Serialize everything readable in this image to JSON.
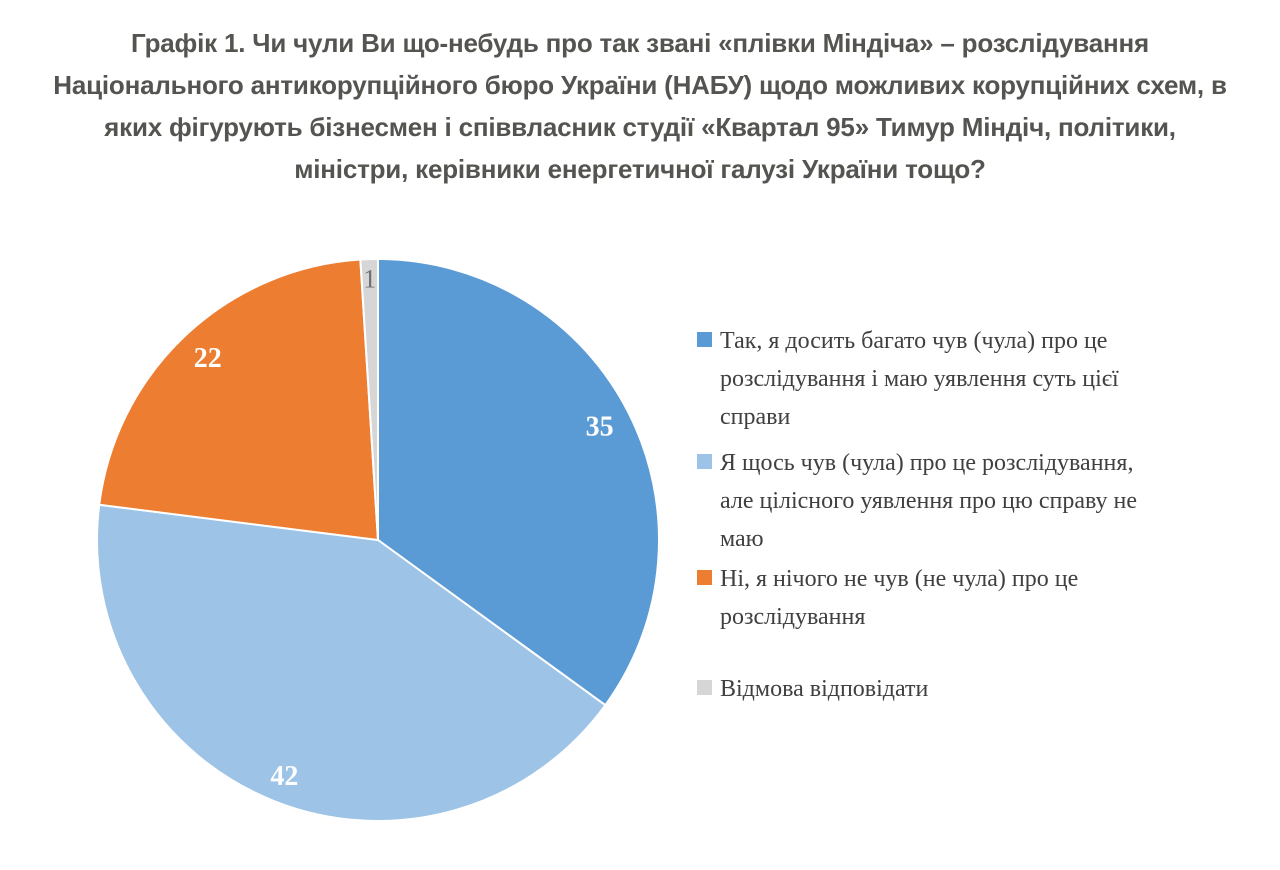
{
  "title_lines": [
    "Графік 1. Чи чули Ви що-небудь про так звані «плівки Міндіча» – розслідування",
    "Національного антикорупційного бюро України (НАБУ) щодо можливих корупційних схем, в",
    "яких фігурують бізнесмен і співвласник студії «Квартал 95» Тимур Міндіч, політики,",
    "міністри, керівники енергетичної галузі України тощо?"
  ],
  "chart_data": {
    "type": "pie",
    "title": "Графік 1. Чи чули Ви що-небудь про так звані «плівки Міндіча» – розслідування Національного антикорупційного бюро України (НАБУ) щодо можливих корупційних схем, в яких фігурують бізнесмен і співвласник студії «Квартал 95» Тимур Міндіч, політики, міністри, керівники енергетичної галузі України тощо?",
    "categories": [
      "Так, я досить багато чув (чула) про це розслідування і маю уявлення суть цієї справи",
      "Я щось чув (чула) про це розслідування, але цілісного уявлення про цю справу не маю",
      "Ні, я нічого не чув (не чула) про це розслідування",
      "Відмова відповідати"
    ],
    "values": [
      35,
      42,
      22,
      1
    ],
    "data_labels": [
      "35",
      "42",
      "22",
      "1"
    ],
    "colors": [
      "#5B9BD5",
      "#9DC3E6",
      "#ED7D31",
      "#D6D6D6"
    ],
    "data_label_colors": [
      "#FFFFFF",
      "#FFFFFF",
      "#FFFFFF",
      "#6F6F6F"
    ],
    "start_angle": 0,
    "direction": "clockwise",
    "legend_position": "right",
    "slice_border_color": "#FFFFFF"
  }
}
